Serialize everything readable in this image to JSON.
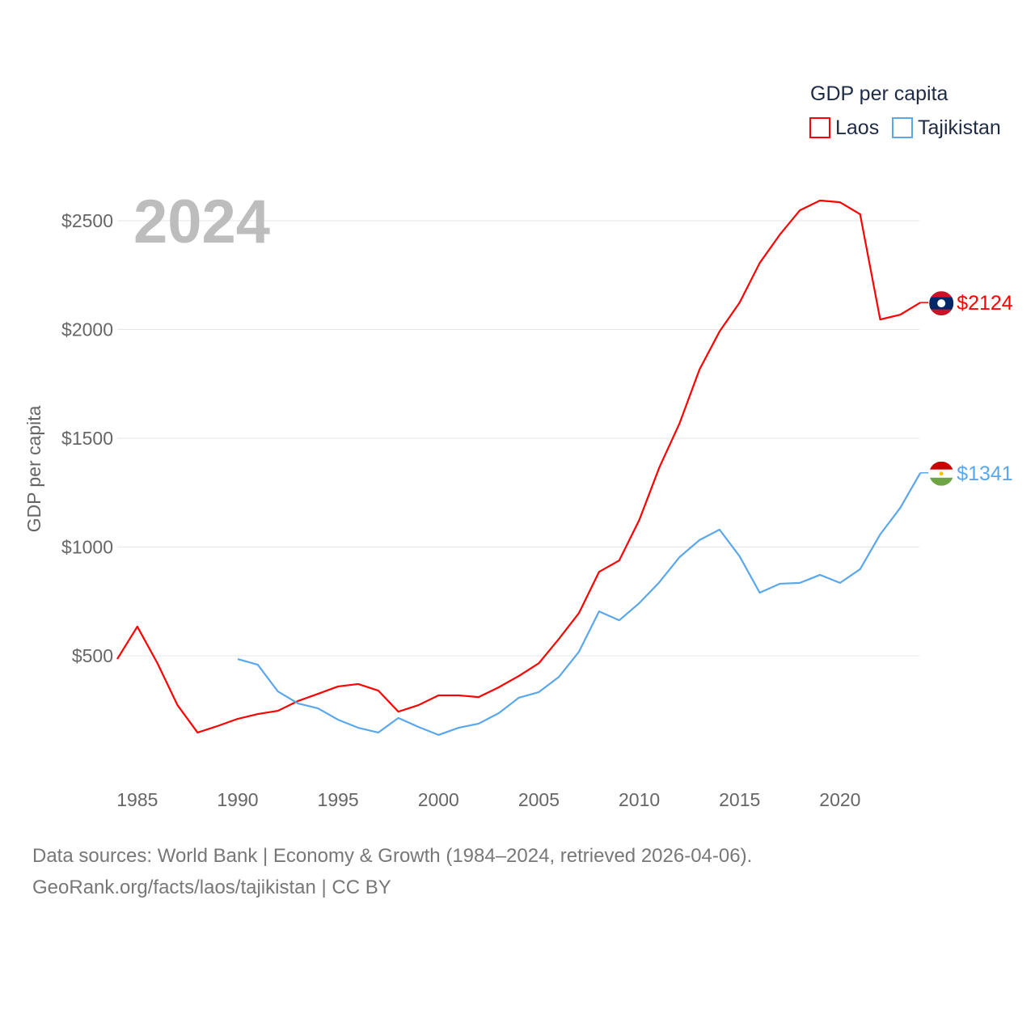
{
  "chart_data": {
    "type": "line",
    "title": "",
    "year_label": "2024",
    "xlabel": "",
    "ylabel": "GDP per capita",
    "legend_title": "GDP per capita",
    "legend_position": "top-right",
    "xlim": [
      1984,
      2024
    ],
    "ylim": [
      0,
      2700
    ],
    "x_ticks": [
      1985,
      1990,
      1995,
      2000,
      2005,
      2010,
      2015,
      2020
    ],
    "y_ticks": [
      500,
      1000,
      1500,
      2000,
      2500
    ],
    "y_tick_labels": [
      "$500",
      "$1000",
      "$1500",
      "$2000",
      "$2500"
    ],
    "grid": true,
    "series": [
      {
        "name": "Laos",
        "color": "#ff0000",
        "end_label": "$2124",
        "x": [
          1984,
          1985,
          1986,
          1987,
          1988,
          1989,
          1990,
          1991,
          1992,
          1993,
          1994,
          1995,
          1996,
          1997,
          1998,
          1999,
          2000,
          2001,
          2002,
          2003,
          2004,
          2005,
          2006,
          2007,
          2008,
          2009,
          2010,
          2011,
          2012,
          2013,
          2014,
          2015,
          2016,
          2017,
          2018,
          2019,
          2020,
          2021,
          2022,
          2023,
          2024
        ],
        "values": [
          485,
          634,
          466,
          273,
          147,
          177,
          210,
          232,
          247,
          292,
          325,
          359,
          370,
          340,
          243,
          273,
          318,
          318,
          310,
          355,
          407,
          466,
          578,
          697,
          886,
          938,
          1124,
          1366,
          1567,
          1816,
          1991,
          2124,
          2306,
          2436,
          2548,
          2593,
          2585,
          2530,
          2046,
          2068,
          2124
        ]
      },
      {
        "name": "Tajikistan",
        "color": "#5ba7ec",
        "end_label": "$1341",
        "x": [
          1990,
          1991,
          1992,
          1993,
          1994,
          1995,
          1996,
          1997,
          1998,
          1999,
          2000,
          2001,
          2002,
          2003,
          2004,
          2005,
          2006,
          2007,
          2008,
          2009,
          2010,
          2011,
          2012,
          2013,
          2014,
          2015,
          2016,
          2017,
          2018,
          2019,
          2020,
          2021,
          2022,
          2023,
          2024
        ],
        "values": [
          485,
          459,
          336,
          281,
          258,
          206,
          169,
          147,
          214,
          173,
          136,
          169,
          188,
          236,
          307,
          333,
          403,
          519,
          704,
          663,
          742,
          838,
          953,
          1032,
          1080,
          957,
          790,
          831,
          835,
          872,
          835,
          898,
          1058,
          1180,
          1341
        ]
      }
    ]
  },
  "footer": {
    "line1": "Data sources: World Bank | Economy & Growth (1984–2024, retrieved 2026-04-06).",
    "line2": "GeoRank.org/facts/laos/tajikistan | CC BY"
  }
}
